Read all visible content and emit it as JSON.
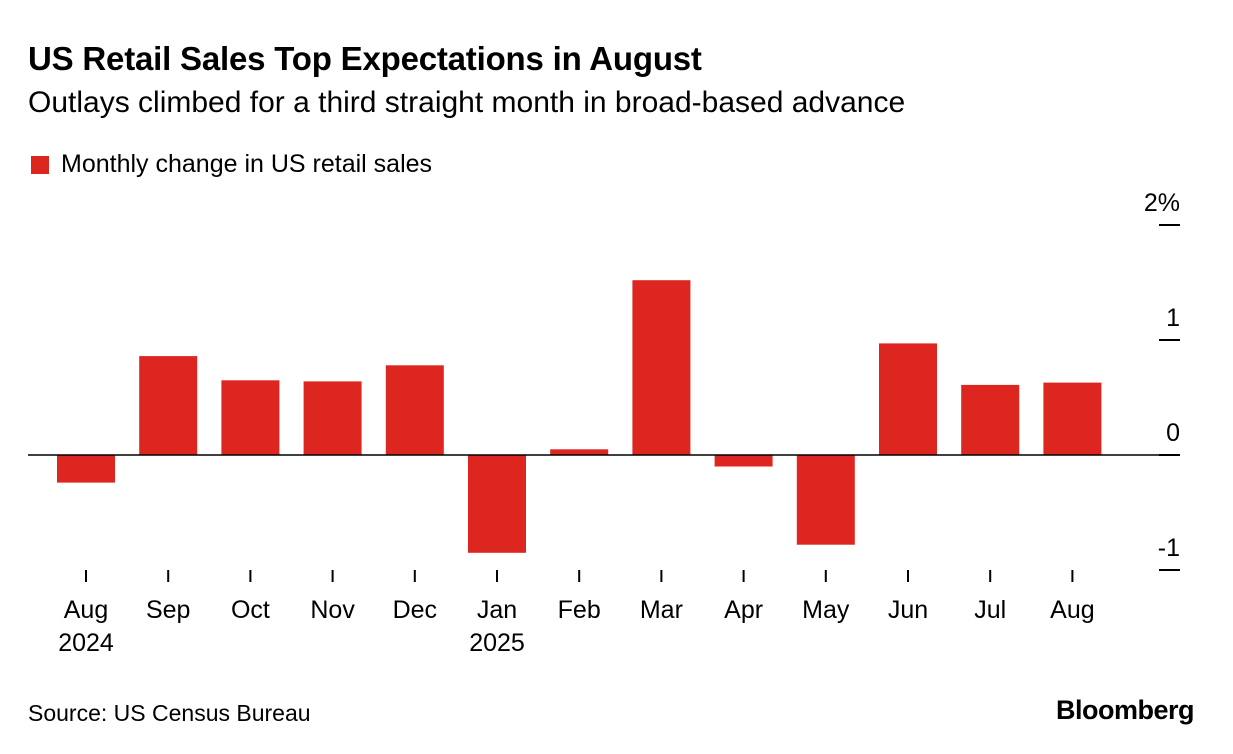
{
  "header": {
    "title": "US Retail Sales Top Expectations in August",
    "subtitle": "Outlays climbed for a third straight month in broad-based advance"
  },
  "legend": {
    "label": "Monthly change in US retail sales"
  },
  "footer": {
    "source": "Source: US Census Bureau",
    "brand": "Bloomberg"
  },
  "colors": {
    "bar": "#dd2620",
    "axis": "#000000"
  },
  "chart_data": {
    "type": "bar",
    "categories": [
      "Aug",
      "Sep",
      "Oct",
      "Nov",
      "Dec",
      "Jan",
      "Feb",
      "Mar",
      "Apr",
      "May",
      "Jun",
      "Jul",
      "Aug"
    ],
    "category_sublabels": [
      "2024",
      "",
      "",
      "",
      "",
      "2025",
      "",
      "",
      "",
      "",
      "",
      "",
      ""
    ],
    "values": [
      -0.24,
      0.86,
      0.65,
      0.64,
      0.78,
      -0.85,
      0.05,
      1.52,
      -0.1,
      -0.78,
      0.97,
      0.61,
      0.63
    ],
    "series": [
      {
        "name": "Monthly change in US retail sales",
        "values": [
          -0.24,
          0.86,
          0.65,
          0.64,
          0.78,
          -0.85,
          0.05,
          1.52,
          -0.1,
          -0.78,
          0.97,
          0.61,
          0.63
        ]
      }
    ],
    "y_ticks": [
      {
        "value": 2,
        "label": "2%"
      },
      {
        "value": 1,
        "label": "1"
      },
      {
        "value": 0,
        "label": "0"
      },
      {
        "value": -1,
        "label": "-1"
      }
    ],
    "ylim": [
      -1,
      2
    ],
    "y_axis_position": "right",
    "grid": false,
    "legend_position": "top-left",
    "title": "US Retail Sales Top Expectations in August",
    "subtitle": "Outlays climbed for a third straight month in broad-based advance",
    "xlabel": "",
    "ylabel": ""
  }
}
